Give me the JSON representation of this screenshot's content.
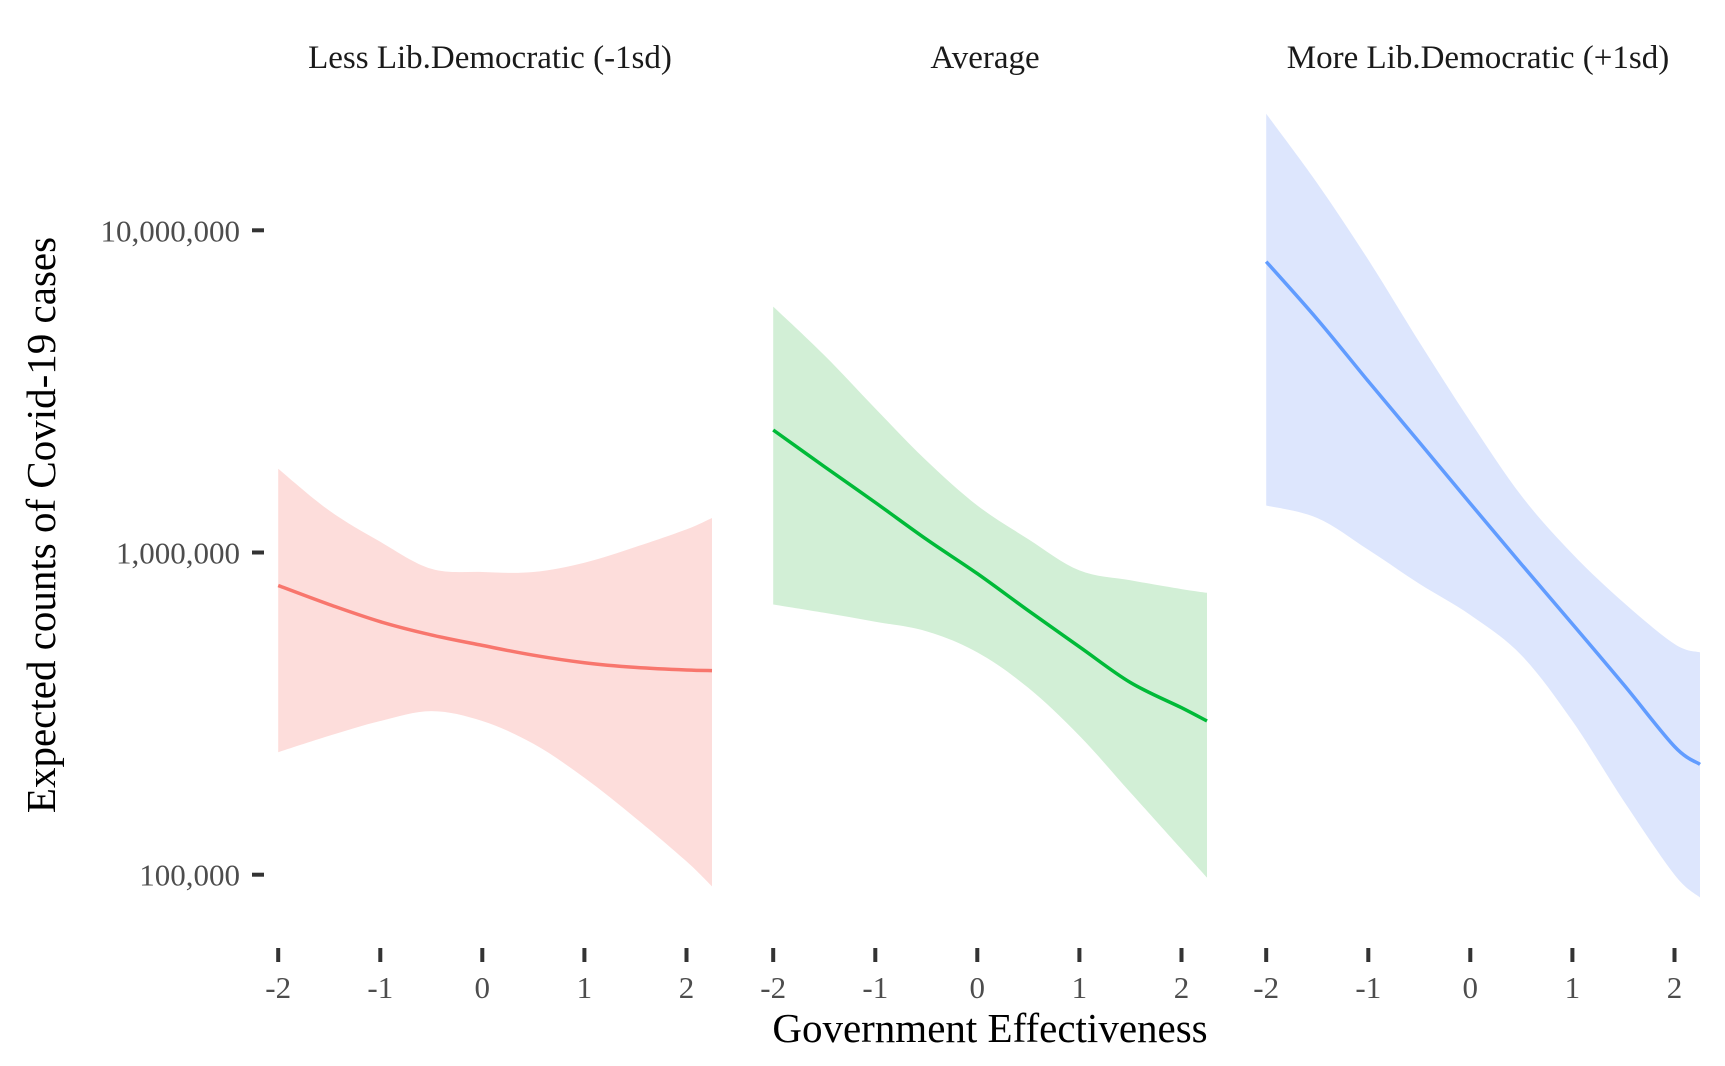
{
  "chart_data": {
    "type": "line",
    "xlabel": "Government Effectiveness",
    "ylabel": "Expected counts of Covid-19 cases",
    "y_scale": "log10",
    "ylim": [
      75000,
      22000000
    ],
    "yticks": [
      {
        "value": 100000,
        "label": "100,000"
      },
      {
        "value": 1000000,
        "label": "1,000,000"
      },
      {
        "value": 10000000,
        "label": "10,000,000"
      }
    ],
    "xticks": [
      {
        "value": -2,
        "label": "-2"
      },
      {
        "value": -1,
        "label": "-1"
      },
      {
        "value": 0,
        "label": "0"
      },
      {
        "value": 1,
        "label": "1"
      },
      {
        "value": 2,
        "label": "2"
      }
    ],
    "xlim": [
      -2.1,
      2.25
    ],
    "grid": false,
    "legend": "none",
    "panels": [
      {
        "title": "Less Lib.Democratic (-1sd)",
        "color": "#F8766D",
        "ribbon_color": "#FDDDDB",
        "x": [
          -2.0,
          -1.5,
          -1.0,
          -0.5,
          0.0,
          0.5,
          1.0,
          1.5,
          2.0,
          2.25
        ],
        "fit": [
          790000,
          690000,
          610000,
          555000,
          515000,
          480000,
          455000,
          440000,
          432000,
          430000
        ],
        "lower": [
          240000,
          270000,
          300000,
          322000,
          300000,
          255000,
          200000,
          150000,
          110000,
          92000
        ],
        "upper": [
          1820000,
          1350000,
          1080000,
          890000,
          870000,
          870000,
          930000,
          1040000,
          1180000,
          1280000
        ]
      },
      {
        "title": "Average",
        "color": "#00BA38",
        "ribbon_color": "#D2EFD6",
        "x": [
          -2.0,
          -1.5,
          -1.0,
          -0.5,
          0.0,
          0.5,
          1.0,
          1.5,
          2.0,
          2.25
        ],
        "fit": [
          2400000,
          1850000,
          1430000,
          1100000,
          860000,
          660000,
          510000,
          395000,
          330000,
          300000
        ],
        "lower": [
          690000,
          650000,
          610000,
          570000,
          490000,
          380000,
          270000,
          180000,
          120000,
          98000
        ],
        "upper": [
          5800000,
          4100000,
          2800000,
          1930000,
          1400000,
          1100000,
          880000,
          820000,
          770000,
          750000
        ]
      },
      {
        "title": "More Lib.Democratic (+1sd)",
        "color": "#619CFF",
        "ribbon_color": "#DDE6FD",
        "x": [
          -2.0,
          -1.5,
          -1.0,
          -0.5,
          0.0,
          0.5,
          1.0,
          1.5,
          2.0,
          2.25
        ],
        "fit": [
          8000000,
          5300000,
          3400000,
          2200000,
          1420000,
          920000,
          600000,
          390000,
          250000,
          220000
        ],
        "lower": [
          1400000,
          1280000,
          1020000,
          800000,
          640000,
          480000,
          300000,
          170000,
          100000,
          85000
        ],
        "upper": [
          23000000,
          14000000,
          8100000,
          4500000,
          2550000,
          1500000,
          990000,
          700000,
          520000,
          490000
        ]
      }
    ]
  }
}
